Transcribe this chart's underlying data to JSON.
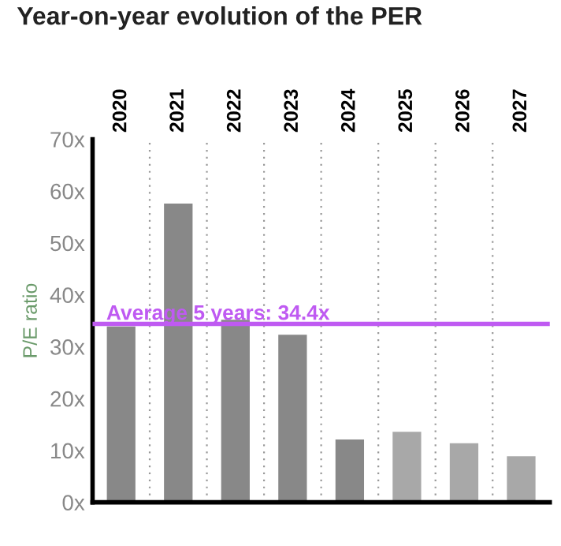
{
  "chart_data": {
    "type": "bar",
    "title": "Year-on-year evolution of the PER",
    "ylabel": "P/E ratio",
    "categories": [
      "2020",
      "2021",
      "2022",
      "2023",
      "2024",
      "2025",
      "2026",
      "2027"
    ],
    "values": [
      33.9,
      57.6,
      35.2,
      32.3,
      12.1,
      13.6,
      11.4,
      8.9
    ],
    "colors": [
      "#888888",
      "#888888",
      "#888888",
      "#888888",
      "#888888",
      "#a8a8a8",
      "#a8a8a8",
      "#a8a8a8"
    ],
    "ylim": [
      0,
      70
    ],
    "yticks": [
      {
        "value": 0,
        "label": "0x"
      },
      {
        "value": 10,
        "label": "10x"
      },
      {
        "value": 20,
        "label": "20x"
      },
      {
        "value": 30,
        "label": "30x"
      },
      {
        "value": 40,
        "label": "40x"
      },
      {
        "value": 50,
        "label": "50x"
      },
      {
        "value": 60,
        "label": "60x"
      },
      {
        "value": 70,
        "label": "70x"
      }
    ],
    "ref_lines": [
      {
        "axis": "y",
        "value": 34.4,
        "label": "Average 5 years: 34.4x",
        "color": "#bf5af2"
      }
    ],
    "grid": "x",
    "legend": false
  }
}
